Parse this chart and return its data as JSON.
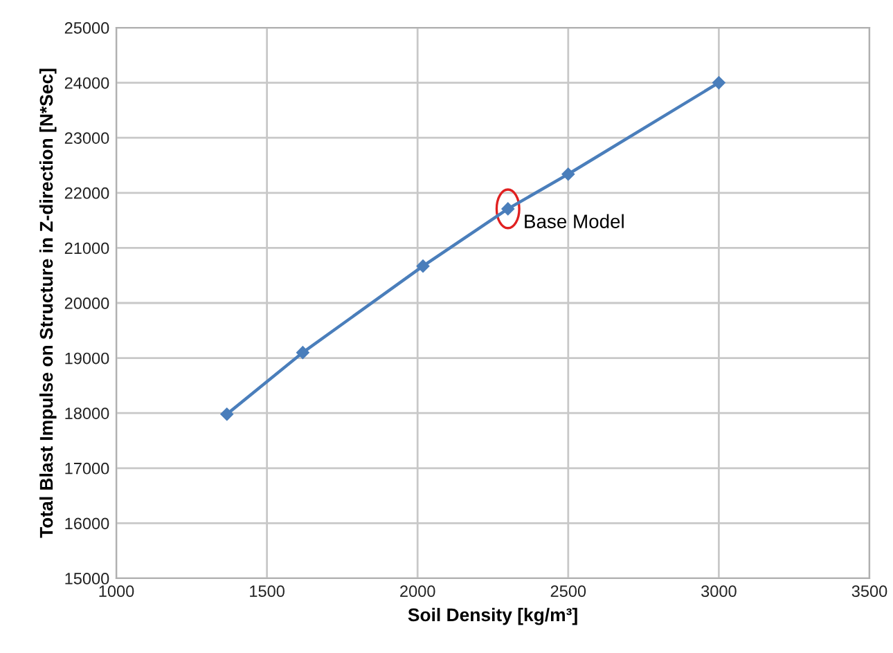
{
  "chart_data": {
    "type": "line",
    "xlabel": "Soil Density [kg/m³]",
    "ylabel": "Total Blast Impulse on Structure in Z-direction [N*Sec]",
    "x": [
      1367,
      1619,
      2018,
      2300,
      2500,
      3000
    ],
    "series": [
      {
        "color": "#4a7ebb",
        "values": [
          17980,
          19100,
          20670,
          21710,
          22340,
          24000
        ]
      }
    ],
    "xlim": [
      1000,
      3500
    ],
    "xticks": [
      1000,
      1500,
      2000,
      2500,
      3000,
      3500
    ],
    "ylim": [
      15000,
      25000
    ],
    "yticks": [
      15000,
      16000,
      17000,
      18000,
      19000,
      20000,
      21000,
      22000,
      23000,
      24000,
      25000
    ],
    "grid": true,
    "marker": "diamond",
    "line_style": "solid",
    "legend": false,
    "annotations": [
      {
        "text": "Base Model",
        "x": 2300,
        "y": 21710
      }
    ]
  }
}
